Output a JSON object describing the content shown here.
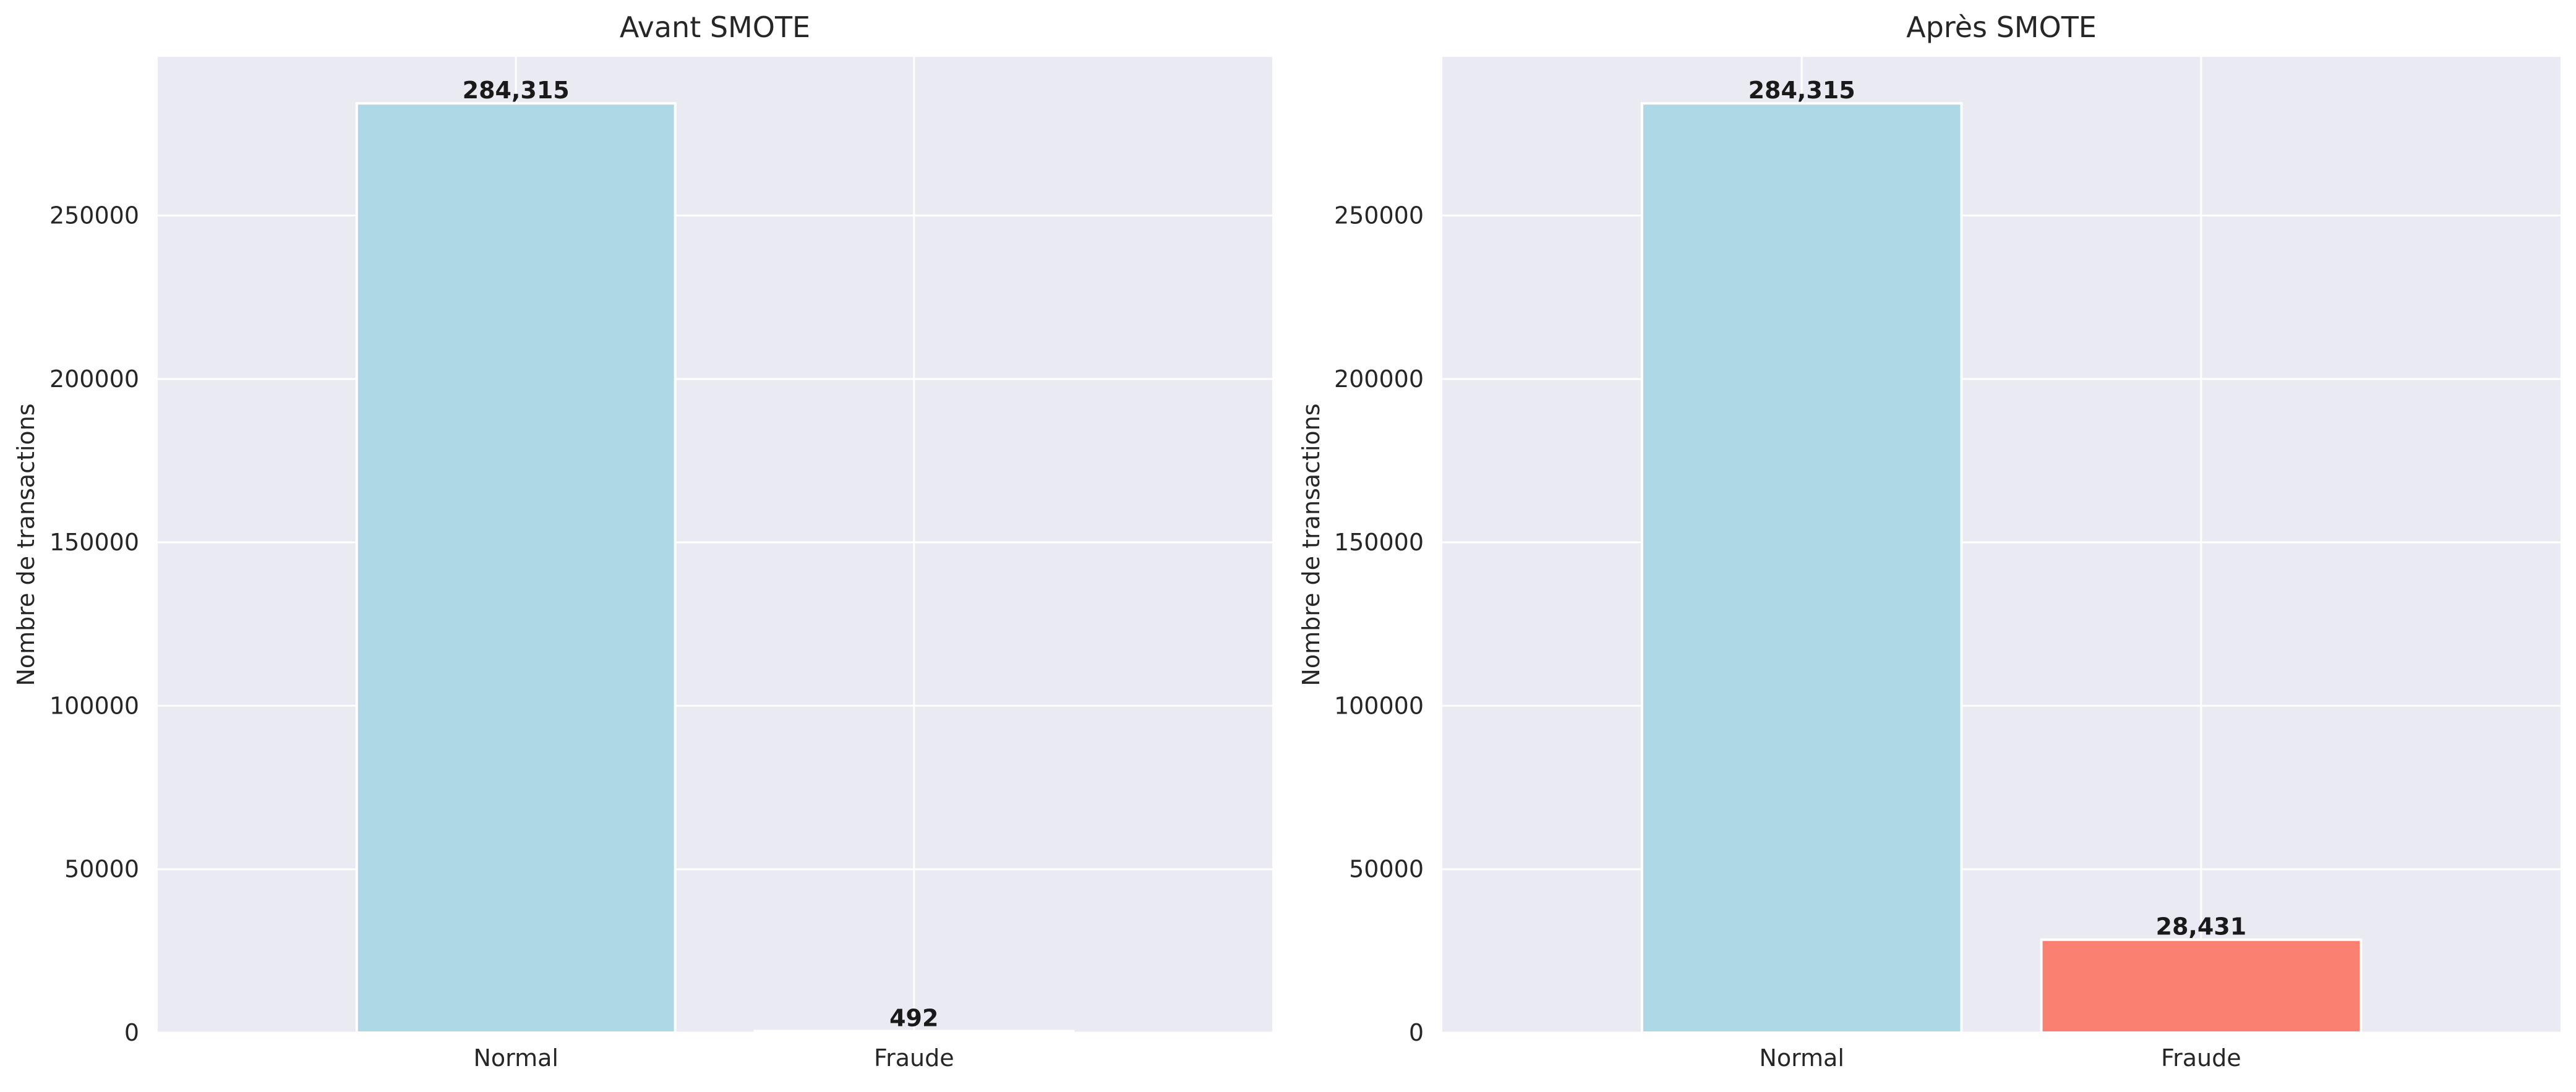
{
  "chart_data": [
    {
      "type": "bar",
      "title": "Avant SMOTE",
      "xlabel": "",
      "ylabel": "Nombre de transactions",
      "categories": [
        "Normal",
        "Fraude"
      ],
      "values": [
        284315,
        492
      ],
      "value_labels": [
        "284,315",
        "492"
      ],
      "bar_colors": [
        "#add8e6",
        "#add8e6"
      ],
      "ylim": [
        0,
        298531
      ],
      "yticks": [
        0,
        50000,
        100000,
        150000,
        200000,
        250000
      ],
      "ytick_labels": [
        "0",
        "50000",
        "100000",
        "150000",
        "200000",
        "250000"
      ],
      "grid": true,
      "background": "#eaeaf2"
    },
    {
      "type": "bar",
      "title": "Après SMOTE",
      "xlabel": "",
      "ylabel": "Nombre de transactions",
      "categories": [
        "Normal",
        "Fraude"
      ],
      "values": [
        284315,
        28431
      ],
      "value_labels": [
        "284,315",
        "28,431"
      ],
      "bar_colors": [
        "#add8e6",
        "#fa8072"
      ],
      "ylim": [
        0,
        298531
      ],
      "yticks": [
        0,
        50000,
        100000,
        150000,
        200000,
        250000
      ],
      "ytick_labels": [
        "0",
        "50000",
        "100000",
        "150000",
        "200000",
        "250000"
      ],
      "grid": true,
      "background": "#eaeaf2"
    }
  ]
}
